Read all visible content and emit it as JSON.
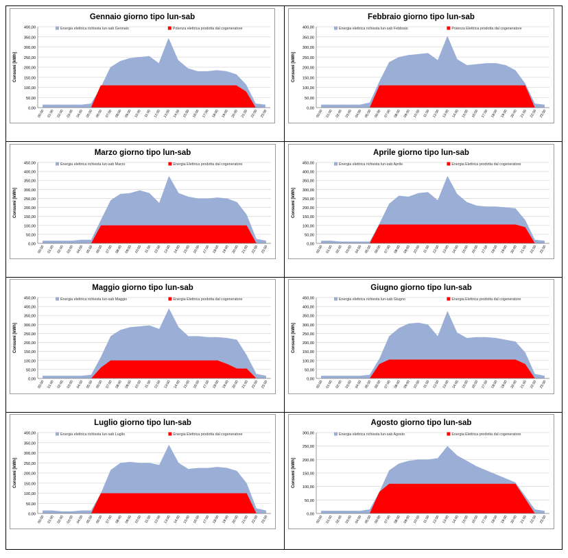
{
  "colors": {
    "demand": "#9bafd6",
    "generation": "#ff0000",
    "grid": "#d9d9d9",
    "axis": "#7f7f7f"
  },
  "chart_data": [
    {
      "type": "area",
      "title": "Gennaio giorno tipo lun-sab",
      "ylabel": "Consumi [kWh]",
      "ylim": [
        0,
        400
      ],
      "yticks": [
        "0,00",
        "50,00",
        "100,00",
        "150,00",
        "200,00",
        "250,00",
        "300,00",
        "350,00",
        "400,00"
      ],
      "categories": [
        "00:00",
        "01:00",
        "02:00",
        "03:00",
        "04:00",
        "05:00",
        "06:00",
        "07:00",
        "08:00",
        "09:00",
        "10:00",
        "11:00",
        "12:00",
        "13:00",
        "14:00",
        "15:00",
        "16:00",
        "17:00",
        "18:00",
        "19:00",
        "20:00",
        "21:00",
        "22:00",
        "23:00"
      ],
      "series": [
        {
          "name": "Energia elettrica richiesta lun-sab Gennaio",
          "values": [
            15,
            15,
            15,
            15,
            15,
            20,
            100,
            200,
            230,
            245,
            250,
            255,
            220,
            345,
            235,
            195,
            180,
            180,
            185,
            180,
            165,
            115,
            20,
            15
          ]
        },
        {
          "name": "Potenza elettrica prodotta dal cogeneratore",
          "values": [
            0,
            0,
            0,
            0,
            0,
            0,
            110,
            110,
            110,
            110,
            110,
            110,
            110,
            110,
            110,
            110,
            110,
            110,
            110,
            110,
            110,
            80,
            0,
            0
          ]
        }
      ]
    },
    {
      "type": "area",
      "title": "Febbraio giorno tipo lun-sab",
      "ylabel": "Consumi [kWh]",
      "ylim": [
        0,
        400
      ],
      "yticks": [
        "0,00",
        "50,00",
        "100,00",
        "150,00",
        "200,00",
        "250,00",
        "300,00",
        "350,00",
        "400,00"
      ],
      "categories": [
        "00:00",
        "01:00",
        "02:00",
        "03:00",
        "04:00",
        "05:00",
        "06:00",
        "07:00",
        "08:00",
        "09:00",
        "10:00",
        "11:00",
        "12:00",
        "13:00",
        "14:00",
        "15:00",
        "16:00",
        "17:00",
        "18:00",
        "19:00",
        "20:00",
        "21:00",
        "22:00",
        "23:00"
      ],
      "series": [
        {
          "name": "Energia elettrica richiesta lun-sab Febbraio",
          "values": [
            15,
            15,
            15,
            15,
            15,
            25,
            130,
            225,
            250,
            260,
            265,
            270,
            235,
            355,
            240,
            210,
            215,
            220,
            220,
            210,
            185,
            120,
            20,
            15
          ]
        },
        {
          "name": "Potenza Elettrica prodotta dal cogeneratore",
          "values": [
            0,
            0,
            0,
            0,
            0,
            0,
            110,
            110,
            110,
            110,
            110,
            110,
            110,
            110,
            110,
            110,
            110,
            110,
            110,
            110,
            110,
            110,
            0,
            0
          ]
        }
      ]
    },
    {
      "type": "area",
      "title": "Marzo giorno tipo lun-sab",
      "ylabel": "Consumi [kWh]",
      "ylim": [
        0,
        450
      ],
      "yticks": [
        "0,00",
        "50,00",
        "100,00",
        "150,00",
        "200,00",
        "250,00",
        "300,00",
        "350,00",
        "400,00",
        "450,00"
      ],
      "categories": [
        "00:00",
        "01:00",
        "02:00",
        "03:00",
        "04:00",
        "05:00",
        "06:00",
        "07:00",
        "08:00",
        "09:00",
        "10:00",
        "11:00",
        "12:00",
        "13:00",
        "14:00",
        "15:00",
        "16:00",
        "17:00",
        "18:00",
        "19:00",
        "20:00",
        "21:00",
        "22:00",
        "23:00"
      ],
      "series": [
        {
          "name": "Energia elettrica richiesta lun-sab Marzo",
          "values": [
            15,
            15,
            15,
            15,
            20,
            20,
            130,
            240,
            275,
            280,
            295,
            280,
            225,
            375,
            280,
            260,
            250,
            250,
            255,
            250,
            230,
            160,
            25,
            15
          ]
        },
        {
          "name": "Energia Elettrica prodotta dal cogeneratore",
          "values": [
            0,
            0,
            0,
            0,
            0,
            0,
            100,
            100,
            100,
            100,
            100,
            100,
            100,
            100,
            100,
            100,
            100,
            100,
            100,
            100,
            100,
            100,
            0,
            0
          ]
        }
      ]
    },
    {
      "type": "area",
      "title": "Aprile giorno tipo lun-sab",
      "ylabel": "Consumi [kWh]",
      "ylim": [
        0,
        450
      ],
      "yticks": [
        "0,00",
        "50,00",
        "100,00",
        "150,00",
        "200,00",
        "250,00",
        "300,00",
        "350,00",
        "400,00",
        "450,00"
      ],
      "categories": [
        "00:00",
        "01:00",
        "02:00",
        "03:00",
        "04:00",
        "05:00",
        "06:00",
        "07:00",
        "08:00",
        "09:00",
        "10:00",
        "11:00",
        "12:00",
        "13:00",
        "14:00",
        "15:00",
        "16:00",
        "17:00",
        "18:00",
        "19:00",
        "20:00",
        "21:00",
        "22:00",
        "23:00"
      ],
      "series": [
        {
          "name": "Energia elettrica richiesta lun-sab Aprile",
          "values": [
            15,
            15,
            10,
            10,
            10,
            10,
            110,
            220,
            265,
            260,
            280,
            285,
            240,
            375,
            275,
            230,
            210,
            205,
            205,
            200,
            195,
            130,
            20,
            15
          ]
        },
        {
          "name": "Energia Elettrica prodotta dal cogeneratore",
          "values": [
            0,
            0,
            0,
            0,
            0,
            0,
            105,
            105,
            105,
            105,
            105,
            105,
            105,
            105,
            105,
            105,
            105,
            105,
            105,
            105,
            105,
            90,
            0,
            0
          ]
        }
      ]
    },
    {
      "type": "area",
      "title": "Maggio giorno tipo lun-sab",
      "ylabel": "Consumi [kWh]",
      "ylim": [
        0,
        450
      ],
      "yticks": [
        "0,00",
        "50,00",
        "100,00",
        "150,00",
        "200,00",
        "250,00",
        "300,00",
        "350,00",
        "400,00",
        "450,00"
      ],
      "categories": [
        "00:00",
        "01:00",
        "02:00",
        "03:00",
        "04:00",
        "05:00",
        "06:00",
        "07:00",
        "08:00",
        "09:00",
        "10:00",
        "11:00",
        "12:00",
        "13:00",
        "14:00",
        "15:00",
        "16:00",
        "17:00",
        "18:00",
        "19:00",
        "20:00",
        "21:00",
        "22:00",
        "23:00"
      ],
      "series": [
        {
          "name": "Energia elettrica richiesta lun-sab Maggio",
          "values": [
            15,
            15,
            15,
            15,
            15,
            20,
            120,
            235,
            270,
            285,
            290,
            295,
            275,
            390,
            285,
            235,
            235,
            230,
            230,
            225,
            215,
            130,
            25,
            15
          ]
        },
        {
          "name": "Energia Elettrica prodotta dal cogeneratore",
          "values": [
            0,
            0,
            0,
            0,
            0,
            0,
            60,
            100,
            100,
            100,
            100,
            100,
            100,
            100,
            100,
            100,
            100,
            100,
            100,
            80,
            55,
            55,
            0,
            0
          ]
        }
      ]
    },
    {
      "type": "area",
      "title": "Giugno giorno tipo lun-sab",
      "ylabel": "Consumi [kWh]",
      "ylim": [
        0,
        450
      ],
      "yticks": [
        "0,00",
        "50,00",
        "100,00",
        "150,00",
        "200,00",
        "250,00",
        "300,00",
        "350,00",
        "400,00",
        "450,00"
      ],
      "categories": [
        "00:00",
        "01:00",
        "02:00",
        "03:00",
        "04:00",
        "05:00",
        "06:00",
        "07:00",
        "08:00",
        "09:00",
        "10:00",
        "11:00",
        "12:00",
        "13:00",
        "14:00",
        "15:00",
        "16:00",
        "17:00",
        "18:00",
        "19:00",
        "20:00",
        "21:00",
        "22:00",
        "23:00"
      ],
      "series": [
        {
          "name": "Energia elettrica richiesta lun-sab Giugno",
          "values": [
            15,
            15,
            15,
            15,
            15,
            20,
            110,
            235,
            280,
            305,
            310,
            300,
            235,
            375,
            255,
            225,
            230,
            230,
            225,
            215,
            205,
            145,
            25,
            15
          ]
        },
        {
          "name": "Energia Elettrica prodotta dal cogeneratore",
          "values": [
            0,
            0,
            0,
            0,
            0,
            0,
            80,
            105,
            105,
            105,
            105,
            105,
            105,
            105,
            105,
            105,
            105,
            105,
            105,
            105,
            105,
            80,
            0,
            0
          ]
        }
      ]
    },
    {
      "type": "area",
      "title": "Luglio giorno tipo lun-sab",
      "ylabel": "Consumi [kWh]",
      "ylim": [
        0,
        400
      ],
      "yticks": [
        "0,00",
        "50,00",
        "100,00",
        "150,00",
        "200,00",
        "250,00",
        "300,00",
        "350,00",
        "400,00"
      ],
      "categories": [
        "00:00",
        "01:00",
        "02:00",
        "03:00",
        "04:00",
        "05:00",
        "06:00",
        "07:00",
        "08:00",
        "09:00",
        "10:00",
        "11:00",
        "12:00",
        "13:00",
        "14:00",
        "15:00",
        "16:00",
        "17:00",
        "18:00",
        "19:00",
        "20:00",
        "21:00",
        "22:00",
        "23:00"
      ],
      "series": [
        {
          "name": "Energia elettrica richiesta lun-sab Luglio",
          "values": [
            15,
            15,
            10,
            10,
            15,
            15,
            100,
            215,
            250,
            255,
            250,
            250,
            240,
            340,
            250,
            220,
            225,
            225,
            230,
            225,
            210,
            150,
            25,
            15
          ]
        },
        {
          "name": "Energia Elettrica prodotta dal cogeneratore",
          "values": [
            0,
            0,
            0,
            0,
            0,
            0,
            100,
            100,
            100,
            100,
            100,
            100,
            100,
            100,
            100,
            100,
            100,
            100,
            100,
            100,
            100,
            100,
            0,
            0
          ]
        }
      ]
    },
    {
      "type": "area",
      "title": "Agosto giorno tipo lun-sab",
      "ylabel": "Consumi [kWh]",
      "ylim": [
        0,
        300
      ],
      "yticks": [
        "0,00",
        "50,00",
        "100,00",
        "150,00",
        "200,00",
        "250,00",
        "300,00"
      ],
      "categories": [
        "00:00",
        "01:00",
        "02:00",
        "03:00",
        "04:00",
        "05:00",
        "06:00",
        "07:00",
        "08:00",
        "09:00",
        "10:00",
        "11:00",
        "12:00",
        "13:00",
        "14:00",
        "15:00",
        "16:00",
        "17:00",
        "18:00",
        "19:00",
        "20:00",
        "21:00",
        "22:00",
        "23:00"
      ],
      "series": [
        {
          "name": "Energia elettrica richiesta lun-sab Agosto",
          "values": [
            10,
            10,
            10,
            10,
            10,
            15,
            80,
            160,
            185,
            195,
            200,
            200,
            205,
            250,
            215,
            195,
            175,
            160,
            145,
            130,
            115,
            65,
            15,
            10
          ]
        },
        {
          "name": "Energia Elettrica prodotta dal cogeneratore",
          "values": [
            0,
            0,
            0,
            0,
            0,
            0,
            80,
            110,
            110,
            110,
            110,
            110,
            110,
            110,
            110,
            110,
            110,
            110,
            110,
            110,
            110,
            55,
            0,
            0
          ]
        }
      ]
    }
  ]
}
